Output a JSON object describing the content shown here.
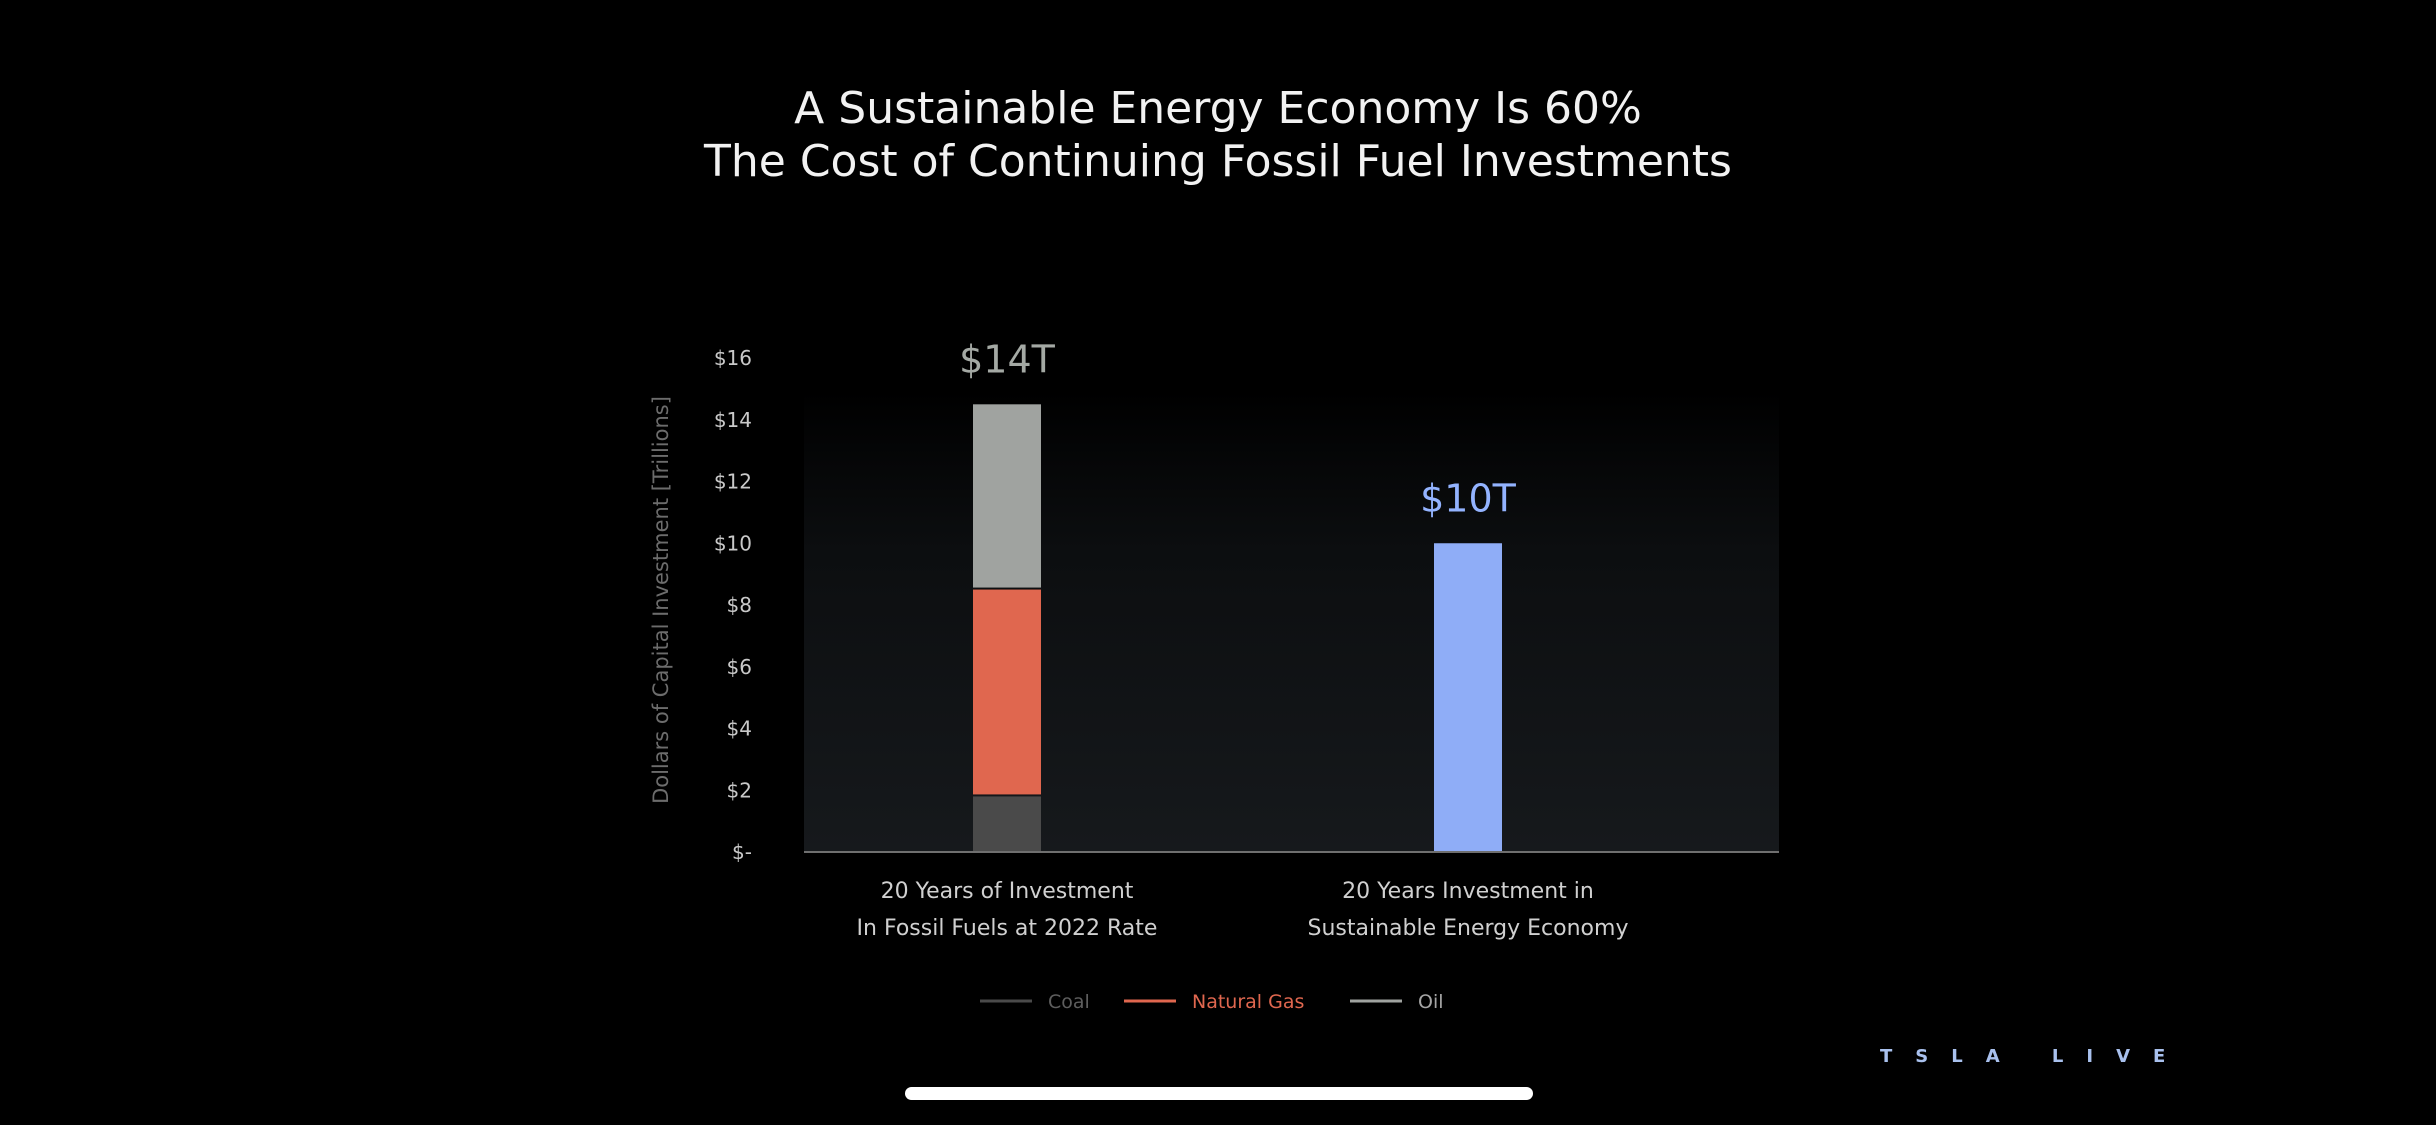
{
  "chart_data": {
    "type": "bar",
    "stacked": true,
    "title_lines": [
      "A Sustainable Energy Economy Is 60%",
      "The Cost of Continuing Fossil Fuel Investments"
    ],
    "ylabel": "Dollars of Capital Investment [Trillions]",
    "ylim": [
      0,
      16
    ],
    "yticks": [
      {
        "value": 0,
        "label": "$-"
      },
      {
        "value": 2,
        "label": "$2"
      },
      {
        "value": 4,
        "label": "$4"
      },
      {
        "value": 6,
        "label": "$6"
      },
      {
        "value": 8,
        "label": "$8"
      },
      {
        "value": 10,
        "label": "$10"
      },
      {
        "value": 12,
        "label": "$12"
      },
      {
        "value": 14,
        "label": "$14"
      },
      {
        "value": 16,
        "label": "$16"
      }
    ],
    "categories": [
      {
        "lines": [
          "20 Years of Investment",
          "In Fossil Fuels at 2022 Rate"
        ]
      },
      {
        "lines": [
          "20 Years Investment in",
          "Sustainable Energy Economy"
        ]
      }
    ],
    "bars": [
      {
        "total_label": "$14T",
        "label_color": "#a4a9a4",
        "segments": [
          {
            "series": "Coal",
            "value": 1.8
          },
          {
            "series": "Natural Gas",
            "value": 6.7
          },
          {
            "series": "Oil",
            "value": 6.0
          }
        ]
      },
      {
        "total_label": "$10T",
        "label_color": "#93b3ff",
        "segments": [
          {
            "series": "Sustainable",
            "value": 10
          }
        ]
      }
    ],
    "series_colors": {
      "Coal": "#4a4a4a",
      "Natural Gas": "#e0674f",
      "Oil": "#a0a3a0",
      "Sustainable": "#8fadf7"
    },
    "legend": {
      "placement": "bottom-center",
      "items": [
        {
          "name": "Coal",
          "color": "#4a4a4a",
          "text_color": "#5e5e5e"
        },
        {
          "name": "Natural Gas",
          "color": "#e0674f",
          "text_color": "#e0674f"
        },
        {
          "name": "Oil",
          "color": "#a0a3a0",
          "text_color": "#a5a5a5"
        }
      ]
    },
    "grid": false
  },
  "watermark": "TSLA LIVE"
}
